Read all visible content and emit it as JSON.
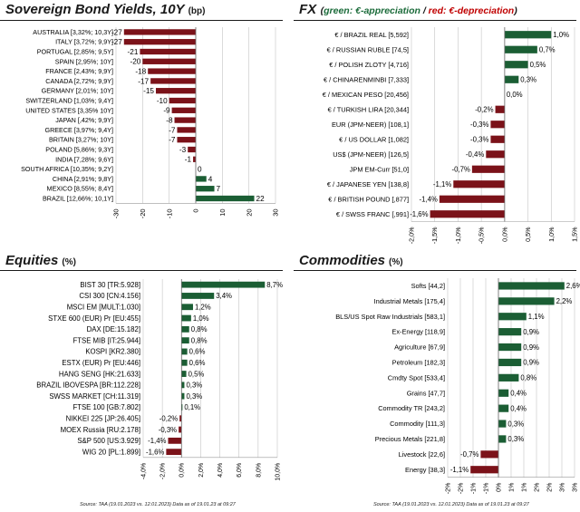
{
  "panels": {
    "bonds": {
      "title": "Sovereign Bond Yields, 10Y",
      "unit": "(bp)"
    },
    "fx": {
      "title": "FX",
      "legend_open": "(",
      "legend_green": "green: €-appreciation",
      "legend_sep": " / ",
      "legend_red": "red: €-depreciation",
      "legend_close": ")"
    },
    "equities": {
      "title": "Equities",
      "unit": "(%)"
    },
    "commodities": {
      "title": "Commodities",
      "unit": "(%)"
    }
  },
  "source_left": "Source: TAA (19.01.2023 vs. 12.01.2023) Data as of 19.01.23 at 09:27",
  "source_right": "Source: TAA (19.01.2023 vs. 12.01.2023) Data as of 19.01.23 at 09:27",
  "colors": {
    "positive": "#1b5e34",
    "negative": "#7b1219"
  },
  "chart_data": [
    {
      "id": "bonds",
      "type": "bar",
      "orientation": "horizontal",
      "categories": [
        "AUSTRALIA [3,32%; 10,3Y]",
        "ITALY [3,72%; 9,9Y]",
        "PORTUGAL [2,85%; 9,5Y]",
        "SPAIN [2,95%; 10Y]",
        "FRANCE [2,43%; 9,9Y]",
        "CANADA [2,72%; 9,9Y]",
        "GERMANY [2,01%; 10Y]",
        "SWITZERLAND [1,03%; 9,4Y]",
        "UNITED STATES [3,35% 10Y]",
        "JAPAN [,42%; 9,9Y]",
        "GREECE [3,97%; 9,4Y]",
        "BRITAIN [3,27%; 10Y]",
        "POLAND [5,86%; 9,3Y]",
        "INDIA [7,28%; 9,6Y]",
        "SOUTH AFRICA [10,35%; 9,2Y]",
        "CHINA [2,91%; 9,8Y]",
        "MEXICO [8,55%; 8,4Y]",
        "BRAZIL [12,66%; 10,1Y]"
      ],
      "values": [
        -27,
        -27,
        -21,
        -20,
        -18,
        -17,
        -15,
        -10,
        -9,
        -8,
        -7,
        -7,
        -3,
        -1,
        0,
        4,
        7,
        22
      ],
      "value_labels": [
        "-27",
        "-27",
        "-21",
        "-20",
        "-18",
        "-17",
        "-15",
        "-10",
        "-9",
        "-8",
        "-7",
        "-7",
        "-3",
        "-1",
        "0",
        "4",
        "7",
        "22"
      ],
      "xlim": [
        -30,
        30
      ],
      "ticks": [
        -30,
        -20,
        -10,
        0,
        10,
        20,
        30
      ],
      "tick_labels": [
        "-30",
        "-20",
        "-10",
        "0",
        "10",
        "20",
        "30"
      ],
      "grid": true
    },
    {
      "id": "fx",
      "type": "bar",
      "orientation": "horizontal",
      "categories": [
        "€ / BRAZIL REAL [5,592]",
        "€ / RUSSIAN RUBLE [74,5]",
        "€ / POLISH ZLOTY [4,716]",
        "€ / CHINARENMINBI [7,333]",
        "€ / MEXICAN  PESO [20,456]",
        "€ / TURKISH LIRA [20,344]",
        "EUR (JPM-NEER) [108,1]",
        "€ / US DOLLAR [1,082]",
        "US$ (JPM-NEER) [126,5]",
        "JPM EM-Curr [51,0]",
        "€ / JAPANESE YEN [138,8]",
        "€ / BRITISH POUND [,877]",
        "€ / SWSS FRANC [,991]"
      ],
      "values": [
        1.0,
        0.7,
        0.5,
        0.3,
        0.0,
        -0.2,
        -0.3,
        -0.3,
        -0.4,
        -0.7,
        -1.1,
        -1.4,
        -1.6
      ],
      "value_labels": [
        "1,0%",
        "0,7%",
        "0,5%",
        "0,3%",
        "0,0%",
        "-0,2%",
        "-0,3%",
        "-0,3%",
        "-0,4%",
        "-0,7%",
        "-1,1%",
        "-1,4%",
        "-1,6%"
      ],
      "xlim": [
        -2.0,
        1.5
      ],
      "ticks": [
        -2.0,
        -1.5,
        -1.0,
        -0.5,
        0.0,
        0.5,
        1.0,
        1.5
      ],
      "tick_labels": [
        "-2,0%",
        "-1,5%",
        "-1,0%",
        "-0,5%",
        "0,0%",
        "0,5%",
        "1,0%",
        "1,5%"
      ],
      "grid": true
    },
    {
      "id": "equities",
      "type": "bar",
      "orientation": "horizontal",
      "categories": [
        "BIST 30  [TR:5.928]",
        "CSI 300 [CN:4.156]",
        "MSCI EM [MULT:1.030]",
        "STXE 600 (EUR) Pr [EU:455]",
        "DAX [DE:15.182]",
        "FTSE MIB [IT:25.944]",
        "KOSPI [KR2.380]",
        "ESTX (EUR) Pr [EU:446]",
        "HANG SENG [HK:21.633]",
        "BRAZIL IBOVESPA [BR:112.228]",
        "SWSS MARKET [CH:11.319]",
        "FTSE 100 [GB:7.802]",
        "NIKKEI 225 [JP:26.405]",
        "MOEX Russia [RU:2.178]",
        "S&P 500 [US:3.929]",
        "WIG 20 [PL:1.899]"
      ],
      "values": [
        8.7,
        3.4,
        1.2,
        1.0,
        0.8,
        0.8,
        0.6,
        0.6,
        0.5,
        0.3,
        0.3,
        0.1,
        -0.2,
        -0.3,
        -1.4,
        -1.6
      ],
      "value_labels": [
        "8,7%",
        "3,4%",
        "1,2%",
        "1,0%",
        "0,8%",
        "0,8%",
        "0,6%",
        "0,6%",
        "0,5%",
        "0,3%",
        "0,3%",
        "0,1%",
        "-0,2%",
        "-0,3%",
        "-1,4%",
        "-1,6%"
      ],
      "xlim": [
        -4.0,
        10.0
      ],
      "ticks": [
        -4.0,
        -2.0,
        0.0,
        2.0,
        4.0,
        6.0,
        8.0,
        10.0
      ],
      "tick_labels": [
        "-4,0%",
        "-2,0%",
        "0,0%",
        "2,0%",
        "4,0%",
        "6,0%",
        "8,0%",
        "10,0%"
      ],
      "grid": true
    },
    {
      "id": "commodities",
      "type": "bar",
      "orientation": "horizontal",
      "categories": [
        "Softs [44,2]",
        "Industrial Metals [175,4]",
        "BLS/US Spot Raw Industrials [583,1]",
        "Ex-Energy [118,9]",
        "Agriculture [67,9]",
        "Petroleum [182,3]",
        "Cmdty Spot [533,4]",
        "Grains [47,7]",
        "Commodity TR [243,2]",
        "Commodity [111,3]",
        "Precious Metals [221,8]",
        "Livestock [22,6]",
        "Energy [38,3]"
      ],
      "values": [
        2.6,
        2.2,
        1.1,
        0.9,
        0.9,
        0.9,
        0.8,
        0.4,
        0.4,
        0.3,
        0.3,
        -0.7,
        -1.1
      ],
      "value_labels": [
        "2,6%",
        "2,2%",
        "1,1%",
        "0,9%",
        "0,9%",
        "0,9%",
        "0,8%",
        "0,4%",
        "0,4%",
        "0,3%",
        "0,3%",
        "-0,7%",
        "-1,1%"
      ],
      "xlim": [
        -2.0,
        3.0
      ],
      "ticks": [
        -2.0,
        -1.5,
        -1.0,
        -0.5,
        0.0,
        0.5,
        1.0,
        1.5,
        2.0,
        2.5,
        3.0
      ],
      "tick_labels": [
        "-2%",
        "-2%",
        "-1%",
        "-1%",
        "0%",
        "1%",
        "1%",
        "2%",
        "2%",
        "3%",
        "3%"
      ],
      "grid": true
    }
  ]
}
